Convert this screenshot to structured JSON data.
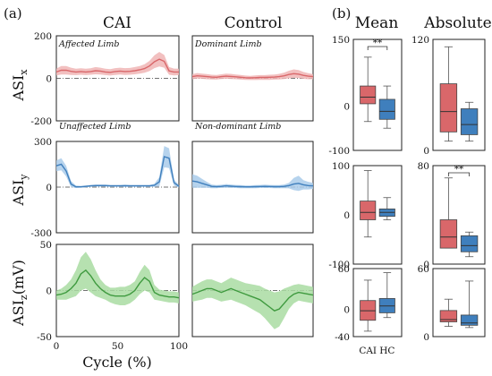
{
  "panel_labels": {
    "a": "(a)",
    "b": "(b)"
  },
  "columns": {
    "cai": "CAI",
    "control": "Control",
    "mean": "Mean",
    "absolute": "Absolute"
  },
  "ylabels": [
    "ASI",
    "ASI",
    "ASI"
  ],
  "ylabel_subs": [
    "x",
    "y",
    "z"
  ],
  "ylabel_suffix_z": "(mV)",
  "xlabel": "Cycle (%)",
  "annotations": {
    "affected": "Affected Limb",
    "dominant": "Dominant Limb",
    "unaffected": "Unaffected Limb",
    "nondominant": "Non-dominant Limb"
  },
  "significance": "**",
  "colors": {
    "red": "#d9676a",
    "red_fill": "#f0b5b5",
    "blue": "#3f7fbd",
    "blue_fill": "#a9cbea",
    "green": "#3f9a3f",
    "green_fill": "#a9dca2"
  },
  "chart_data": [
    {
      "type": "line",
      "panel": "(a)",
      "x": [
        0,
        4,
        8,
        12,
        16,
        20,
        24,
        28,
        32,
        36,
        40,
        44,
        48,
        52,
        56,
        60,
        64,
        68,
        72,
        76,
        80,
        84,
        88,
        92,
        96,
        100
      ],
      "xlim": [
        0,
        100
      ],
      "xticks": [
        "0",
        "50",
        "100"
      ],
      "xlabel": "Cycle (%)",
      "rows": [
        {
          "ylabel": "ASIx",
          "ylim": [
            -200,
            200
          ],
          "yticks": [
            "200",
            "0",
            "-200"
          ],
          "series": [
            {
              "column": "CAI",
              "color": "red",
              "mean": [
                30,
                38,
                38,
                33,
                30,
                32,
                30,
                32,
                36,
                34,
                30,
                28,
                32,
                34,
                32,
                33,
                36,
                40,
                46,
                58,
                78,
                90,
                80,
                35,
                30,
                30
              ],
              "sd": [
                16,
                20,
                20,
                17,
                15,
                15,
                15,
                15,
                17,
                16,
                15,
                15,
                16,
                16,
                16,
                16,
                17,
                18,
                20,
                24,
                30,
                34,
                30,
                18,
                16,
                15
              ]
            },
            {
              "column": "Control",
              "color": "red",
              "mean": [
                8,
                12,
                10,
                8,
                6,
                5,
                8,
                10,
                9,
                7,
                5,
                3,
                2,
                3,
                4,
                4,
                5,
                6,
                8,
                12,
                18,
                22,
                20,
                14,
                10,
                8
              ],
              "sd": [
                12,
                13,
                12,
                12,
                11,
                11,
                11,
                12,
                12,
                11,
                11,
                10,
                10,
                11,
                11,
                11,
                12,
                12,
                13,
                15,
                18,
                20,
                19,
                16,
                14,
                12
              ]
            }
          ]
        },
        {
          "ylabel": "ASIy",
          "ylim": [
            -300,
            300
          ],
          "yticks": [
            "300",
            "0",
            "-300"
          ],
          "series": [
            {
              "column": "CAI",
              "color": "blue",
              "mean": [
                140,
                150,
                105,
                20,
                2,
                2,
                5,
                8,
                10,
                10,
                10,
                8,
                8,
                8,
                9,
                8,
                8,
                8,
                8,
                8,
                12,
                35,
                200,
                190,
                30,
                5
              ],
              "sd": [
                35,
                40,
                35,
                20,
                8,
                6,
                6,
                6,
                7,
                7,
                7,
                6,
                6,
                6,
                7,
                6,
                6,
                6,
                6,
                6,
                10,
                30,
                70,
                65,
                20,
                8
              ]
            },
            {
              "column": "Control",
              "color": "blue",
              "mean": [
                40,
                35,
                25,
                15,
                5,
                3,
                5,
                8,
                6,
                4,
                3,
                2,
                2,
                3,
                4,
                5,
                4,
                3,
                3,
                5,
                10,
                20,
                25,
                15,
                10,
                8
              ],
              "sd": [
                45,
                40,
                30,
                20,
                12,
                10,
                10,
                12,
                11,
                10,
                10,
                9,
                9,
                10,
                10,
                11,
                10,
                10,
                10,
                12,
                18,
                40,
                50,
                30,
                25,
                20
              ]
            }
          ]
        },
        {
          "ylabel": "ASIz(mV)",
          "ylim": [
            -50,
            50
          ],
          "yticks": [
            "50",
            "0",
            "-50"
          ],
          "series": [
            {
              "column": "CAI",
              "color": "green",
              "mean": [
                -5,
                -4,
                -2,
                2,
                8,
                18,
                22,
                16,
                8,
                2,
                -2,
                -5,
                -6,
                -6,
                -6,
                -4,
                0,
                8,
                14,
                10,
                -2,
                -5,
                -6,
                -7,
                -7,
                -8
              ],
              "sd": [
                5,
                6,
                8,
                10,
                14,
                18,
                20,
                18,
                14,
                10,
                8,
                8,
                9,
                10,
                10,
                10,
                10,
                12,
                14,
                12,
                8,
                6,
                6,
                6,
                6,
                6
              ]
            },
            {
              "column": "Control",
              "color": "green",
              "mean": [
                -4,
                -2,
                0,
                2,
                2,
                0,
                -2,
                0,
                2,
                0,
                -2,
                -4,
                -6,
                -8,
                -10,
                -14,
                -18,
                -22,
                -20,
                -14,
                -8,
                -4,
                -2,
                -3,
                -4,
                -5
              ],
              "sd": [
                8,
                9,
                10,
                10,
                10,
                10,
                10,
                11,
                12,
                12,
                12,
                12,
                13,
                14,
                15,
                16,
                18,
                20,
                19,
                16,
                12,
                10,
                9,
                9,
                9,
                9
              ]
            }
          ]
        }
      ]
    },
    {
      "type": "box",
      "panel": "(b)",
      "categories": [
        "CAI",
        "HC"
      ],
      "colors": [
        "red",
        "blue"
      ],
      "rows": [
        {
          "ylabel": "ASIx",
          "mean": {
            "ylim": [
              -100,
              150
            ],
            "yticks": [
              "150",
              "0",
              "-100"
            ],
            "boxes": [
              {
                "whislo": -35,
                "q1": 5,
                "med": 20,
                "q3": 45,
                "whishi": 110
              },
              {
                "whislo": -50,
                "q1": -30,
                "med": -12,
                "q3": 15,
                "whishi": 45
              }
            ],
            "significance": "**"
          },
          "absolute": {
            "ylim": [
              0,
              120
            ],
            "yticks": [
              "120",
              "0"
            ],
            "boxes": [
              {
                "whislo": 10,
                "q1": 20,
                "med": 42,
                "q3": 72,
                "whishi": 112
              },
              {
                "whislo": 10,
                "q1": 17,
                "med": 28,
                "q3": 45,
                "whishi": 52
              }
            ]
          }
        },
        {
          "ylabel": "ASIy",
          "mean": {
            "ylim": [
              -100,
              100
            ],
            "yticks": [
              "100",
              "0",
              "-100"
            ],
            "boxes": [
              {
                "whislo": -45,
                "q1": -10,
                "med": 5,
                "q3": 28,
                "whishi": 90
              },
              {
                "whislo": -10,
                "q1": -3,
                "med": 5,
                "q3": 12,
                "whishi": 35
              }
            ]
          },
          "absolute": {
            "ylim": [
              0,
              80
            ],
            "yticks": [
              "80",
              "0"
            ],
            "boxes": [
              {
                "whislo": 13,
                "q1": 13,
                "med": 22,
                "q3": 36,
                "whishi": 70
              },
              {
                "whislo": 6,
                "q1": 10,
                "med": 15,
                "q3": 23,
                "whishi": 26
              }
            ],
            "significance": "**"
          }
        },
        {
          "ylabel": "ASIz",
          "mean": {
            "ylim": [
              -40,
              60
            ],
            "yticks": [
              "60",
              "0",
              "-40"
            ],
            "boxes": [
              {
                "whislo": -32,
                "q1": -16,
                "med": -2,
                "q3": 13,
                "whishi": 43
              },
              {
                "whislo": -12,
                "q1": -5,
                "med": 5,
                "q3": 16,
                "whishi": 54
              }
            ]
          },
          "absolute": {
            "ylim": [
              0,
              60
            ],
            "yticks": [
              "60",
              "0"
            ],
            "boxes": [
              {
                "whislo": 9,
                "q1": 13,
                "med": 15,
                "q3": 23,
                "whishi": 33
              },
              {
                "whislo": 8,
                "q1": 10,
                "med": 12,
                "q3": 19,
                "whishi": 49
              }
            ]
          }
        }
      ]
    }
  ]
}
